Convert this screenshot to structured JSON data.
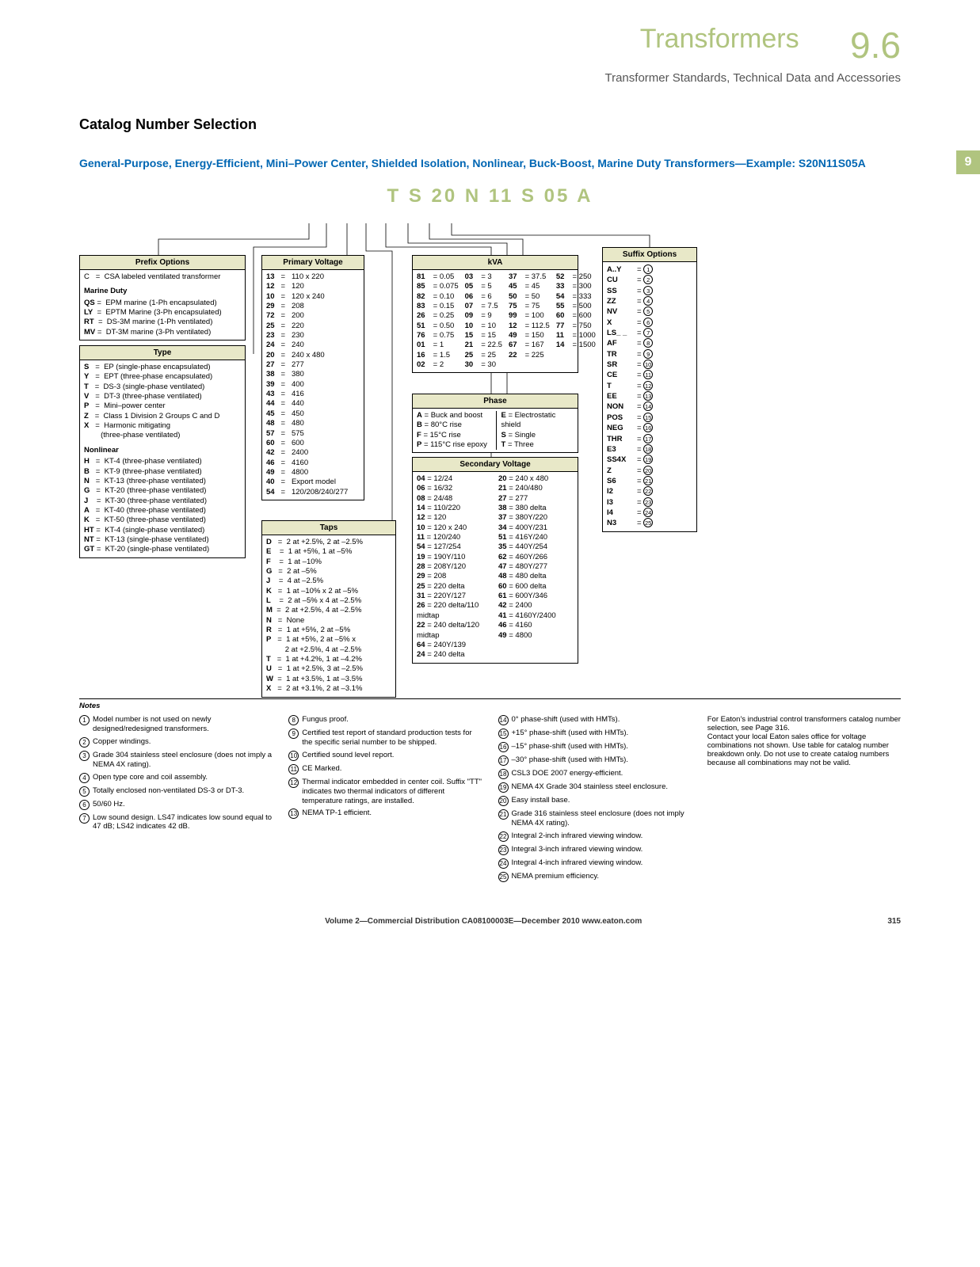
{
  "header": {
    "title": "Transformers",
    "num": "9.6",
    "sub": "Transformer Standards, Technical Data and Accessories",
    "tab": "9"
  },
  "section_title": "Catalog Number Selection",
  "blue_heading": "General-Purpose, Energy-Efficient, Mini–Power Center, Shielded Isolation, Nonlinear, Buck-Boost, Marine Duty Transformers—Example: S20N11S05A",
  "example": "T  S  20  N  11  S  05  A",
  "prefix": {
    "title": "Prefix Options",
    "c_line": "C   =  CSA labeled ventilated transformer",
    "marine_hdr": "Marine Duty",
    "marine": [
      "QS =  EPM marine (1-Ph encapsulated)",
      "LY  =  EPTM Marine (3-Ph encapsulated)",
      "RT  =  DS-3M marine (1-Ph ventilated)",
      "MV =  DT-3M marine (3-Ph ventilated)"
    ]
  },
  "type": {
    "title": "Type",
    "items": [
      "S   =  EP (single-phase encapsulated)",
      "Y   =  EPT (three-phase encapsulated)",
      "T   =  DS-3 (single-phase ventilated)",
      "V   =  DT-3 (three-phase ventilated)",
      "P   =  Mini–power center",
      "Z   =  Class 1 Division 2 Groups C and D",
      "X   =  Harmonic mitigating",
      "        (three-phase ventilated)"
    ],
    "nonlinear_hdr": "Nonlinear",
    "nonlinear": [
      "H   =  KT-4 (three-phase ventilated)",
      "B   =  KT-9 (three-phase ventilated)",
      "N   =  KT-13 (three-phase ventilated)",
      "G   =  KT-20 (three-phase ventilated)",
      "J    =  KT-30 (three-phase ventilated)",
      "A   =  KT-40 (three-phase ventilated)",
      "K   =  KT-50 (three-phase ventilated)",
      "HT =  KT-4 (single-phase ventilated)",
      "NT =  KT-13 (single-phase ventilated)",
      "GT =  KT-20 (single-phase ventilated)"
    ]
  },
  "primary": {
    "title": "Primary Voltage",
    "items": [
      "13   =   110 x 220",
      "12   =   120",
      "10   =   120 x 240",
      "29   =   208",
      "72   =   200",
      "25   =   220",
      "23   =   230",
      "24   =   240",
      "20   =   240 x 480",
      "27   =   277",
      "38   =   380",
      "39   =   400",
      "43   =   416",
      "44   =   440",
      "45   =   450",
      "48   =   480",
      "57   =   575",
      "60   =   600",
      "42   =   2400",
      "46   =   4160",
      "49   =   4800",
      "40   =   Export model",
      "54   =   120/208/240/277"
    ]
  },
  "taps": {
    "title": "Taps",
    "items": [
      "D   =  2 at +2.5%, 2 at –2.5%",
      "E    =  1 at +5%, 1 at –5%",
      "F    =  1 at –10%",
      "G   =  2 at –5%",
      "J    =  4 at –2.5%",
      "K   =  1 at –10% x 2 at –5%",
      "L    =  2 at –5% x 4 at –2.5%",
      "M  =  2 at +2.5%, 4 at –2.5%",
      "N   =  None",
      "R   =  1 at +5%, 2 at –5%",
      "P   =  1 at +5%, 2 at –5% x",
      "         2 at +2.5%, 4 at –2.5%",
      "T   =  1 at +4.2%, 1 at –4.2%",
      "U   =  1 at +2.5%, 3 at –2.5%",
      "W  =  1 at +3.5%, 1 at –3.5%",
      "X   =  2 at +3.1%, 2 at –3.1%"
    ]
  },
  "kva": {
    "title": "kVA",
    "cols": [
      [
        "81 = 0.05",
        "85 = 0.075",
        "82 = 0.10",
        "83 = 0.15",
        "26 = 0.25",
        "51 = 0.50",
        "76 = 0.75",
        "01 = 1",
        "16 = 1.5",
        "02 = 2"
      ],
      [
        "03 = 3",
        "05 = 5",
        "06 = 6",
        "07 = 7.5",
        "09 = 9",
        "10 = 10",
        "15 = 15",
        "21 = 22.5",
        "25 = 25",
        "30 = 30"
      ],
      [
        "37 = 37.5",
        "45 = 45",
        "50 = 50",
        "75 = 75",
        "99 = 100",
        "12 = 112.5",
        "49 = 150",
        "67 = 167",
        "22 = 225"
      ],
      [
        "52 = 250",
        "33 = 300",
        "54 = 333",
        "55 = 500",
        "60 = 600",
        "77 = 750",
        "11 = 1000",
        "14 = 1500"
      ]
    ]
  },
  "phase": {
    "title": "Phase",
    "left": [
      "A = Buck and boost",
      "B = 80°C rise",
      "F = 15°C rise",
      "P = 115°C rise epoxy"
    ],
    "right": [
      "E = Electrostatic shield",
      "S = Single",
      "T = Three"
    ]
  },
  "secondary": {
    "title": "Secondary Voltage",
    "left": [
      "04 = 12/24",
      "06 = 16/32",
      "08 = 24/48",
      "14 = 110/220",
      "12 = 120",
      "10 = 120 x 240",
      "11 = 120/240",
      "54 = 127/254",
      "19 = 190Y/110",
      "28 = 208Y/120",
      "29 = 208",
      "25 = 220 delta",
      "31 = 220Y/127",
      "26 = 220 delta/110 midtap",
      "22 = 240 delta/120 midtap",
      "64 = 240Y/139",
      "24 = 240 delta"
    ],
    "right": [
      "20 = 240 x 480",
      "21 = 240/480",
      "27 = 277",
      "38 = 380 delta",
      "37 = 380Y/220",
      "34 = 400Y/231",
      "51 = 416Y/240",
      "35 = 440Y/254",
      "62 = 460Y/266",
      "47 = 480Y/277",
      "48 = 480 delta",
      "60 = 600 delta",
      "61 = 600Y/346",
      "42 = 2400",
      "41 = 4160Y/2400",
      "46 = 4160",
      "49 = 4800"
    ]
  },
  "suffix": {
    "title": "Suffix Options",
    "items": [
      [
        "A..Y",
        "1"
      ],
      [
        "CU",
        "2"
      ],
      [
        "SS",
        "3"
      ],
      [
        "ZZ",
        "4"
      ],
      [
        "NV",
        "5"
      ],
      [
        "X",
        "6"
      ],
      [
        "LS_ _",
        "7"
      ],
      [
        "AF",
        "8"
      ],
      [
        "TR",
        "9"
      ],
      [
        "SR",
        "10"
      ],
      [
        "CE",
        "11"
      ],
      [
        "T",
        "12"
      ],
      [
        "EE",
        "13"
      ],
      [
        "NON",
        "14"
      ],
      [
        "POS",
        "15"
      ],
      [
        "NEG",
        "16"
      ],
      [
        "THR",
        "17"
      ],
      [
        "E3",
        "18"
      ],
      [
        "SS4X",
        "19"
      ],
      [
        "Z",
        "20"
      ],
      [
        "S6",
        "21"
      ],
      [
        "I2",
        "22"
      ],
      [
        "I3",
        "23"
      ],
      [
        "I4",
        "24"
      ],
      [
        "N3",
        "25"
      ]
    ]
  },
  "notes_hdr": "Notes",
  "notes": {
    "c1": [
      [
        "1",
        "Model number is not used on newly designed/redesigned transformers."
      ],
      [
        "2",
        "Copper windings."
      ],
      [
        "3",
        "Grade 304 stainless steel enclosure (does not imply a NEMA 4X rating)."
      ],
      [
        "4",
        "Open type core and coil assembly."
      ],
      [
        "5",
        "Totally enclosed non-ventilated DS-3 or DT-3."
      ],
      [
        "6",
        "50/60 Hz."
      ],
      [
        "7",
        "Low sound design. LS47 indicates low sound equal to 47 dB; LS42 indicates 42 dB."
      ]
    ],
    "c2": [
      [
        "8",
        "Fungus proof."
      ],
      [
        "9",
        "Certified test report of standard production tests for the specific serial number to be shipped."
      ],
      [
        "10",
        "Certified sound level report."
      ],
      [
        "11",
        "CE Marked."
      ],
      [
        "12",
        "Thermal indicator embedded in center coil. Suffix \"TT\" indicates two thermal indicators of different temperature ratings, are installed."
      ],
      [
        "13",
        "NEMA TP-1 efficient."
      ]
    ],
    "c3": [
      [
        "14",
        "0° phase-shift (used with HMTs)."
      ],
      [
        "15",
        "+15° phase-shift (used with HMTs)."
      ],
      [
        "16",
        "–15° phase-shift (used with HMTs)."
      ],
      [
        "17",
        "–30° phase-shift (used with HMTs)."
      ],
      [
        "18",
        "CSL3 DOE 2007 energy-efficient."
      ],
      [
        "19",
        "NEMA 4X Grade 304 stainless steel enclosure."
      ],
      [
        "20",
        "Easy install base."
      ],
      [
        "21",
        "Grade 316 stainless steel enclosure (does not imply NEMA 4X rating)."
      ],
      [
        "22",
        "Integral 2-inch infrared viewing window."
      ],
      [
        "23",
        "Integral 3-inch infrared viewing window."
      ],
      [
        "24",
        "Integral 4-inch infrared viewing window."
      ],
      [
        "25",
        "NEMA premium efficiency."
      ]
    ],
    "c4": "For Eaton's industrial control transformers catalog number selection, see Page 316.\nContact your local Eaton sales office for voltage combinations not shown. Use table for catalog number breakdown only. Do not use to create catalog numbers because all combinations may not be valid."
  },
  "footer": {
    "text": "Volume 2—Commercial Distribution   CA08100003E—December 2010   www.eaton.com",
    "page": "315"
  }
}
